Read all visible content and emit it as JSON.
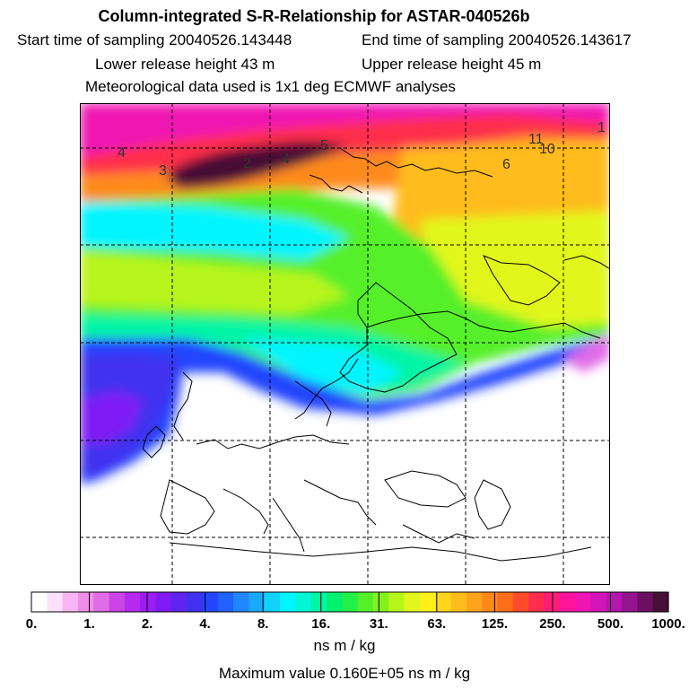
{
  "header": {
    "title": "Column-integrated S-R-Relationship for ASTAR-040526b",
    "start_time": "Start time of sampling 20040526.143448",
    "end_time": "End time of sampling 20040526.143617",
    "lower_height": "Lower release height   43 m",
    "upper_height": "Upper release height   45 m",
    "met_data": "Meteorological data used is 1x1 deg ECMWF analyses"
  },
  "map": {
    "contour_labels": [
      "4",
      "3",
      "2",
      "4",
      "5",
      "11",
      "10",
      "1",
      "6"
    ]
  },
  "colorbar": {
    "tick_labels": [
      "0.",
      "1.",
      "2.",
      "4.",
      "8.",
      "16.",
      "31.",
      "63.",
      "125.",
      "250.",
      "500.",
      "1000."
    ],
    "colors": [
      "#ffffff",
      "#fde0fc",
      "#f8b6f4",
      "#ef8ee9",
      "#e06ce6",
      "#cc44e8",
      "#b52af0",
      "#9b1cf5",
      "#7f1af5",
      "#5e24f0",
      "#4030ef",
      "#2444ff",
      "#1f62ff",
      "#1f86ff",
      "#18aaff",
      "#10d2ff",
      "#00f5ff",
      "#00f7d6",
      "#00f5a5",
      "#00f070",
      "#22f048",
      "#55f02a",
      "#86f21c",
      "#b8f51b",
      "#e1f71c",
      "#fff01a",
      "#ffd61a",
      "#ffbc1a",
      "#ffa41a",
      "#ff8a1a",
      "#ff6e1a",
      "#ff4b2a",
      "#ff2d4b",
      "#ff1b78",
      "#ff139a",
      "#f014b2",
      "#d414b8",
      "#b614ae",
      "#94148f",
      "#6c0e62",
      "#461036"
    ],
    "unit": "ns m / kg",
    "max_value": "Maximum value  0.160E+05 ns m / kg"
  }
}
